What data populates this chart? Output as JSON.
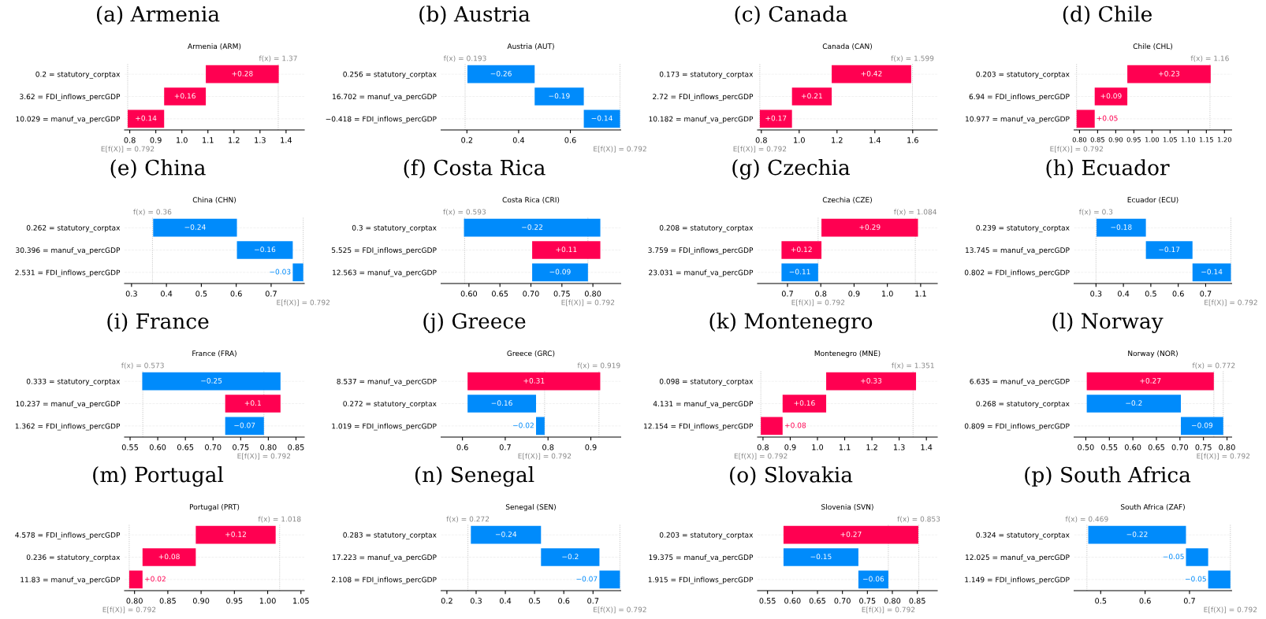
{
  "chart_data": [
    {
      "type": "bar",
      "orientation": "horizontal",
      "title": "(a) Armenia",
      "subtitle": "Armenia (ARM)",
      "categories": [
        "0.2 = statutory_corptax",
        "3.62 = FDI_inflows_percGDP",
        "10.029 = manuf_va_percGDP"
      ],
      "values": [
        0.28,
        0.16,
        0.14
      ],
      "base": [
        1.092,
        0.932,
        0.792
      ],
      "colors": [
        "#ff0051",
        "#ff0051",
        "#ff0051"
      ],
      "value_labels": [
        "+0.28",
        "+0.16",
        "+0.14"
      ],
      "xlim": [
        0.78,
        1.47
      ],
      "xticks": [
        0.8,
        0.9,
        {
          "value": 1,
          "label": "1.0"
        },
        1.1,
        1.2,
        1.3,
        1.4
      ],
      "grid": "y",
      "ref_lines": [
        {
          "axis": "x",
          "value": 1.37,
          "label": "f(x) = 1.37",
          "line_style": "dotted"
        },
        {
          "axis": "x",
          "value": 0.792,
          "label": "E[f(X)] = 0.792",
          "line_style": "dotted"
        }
      ]
    },
    {
      "type": "bar",
      "orientation": "horizontal",
      "title": "(b) Austria",
      "subtitle": "Austria (AUT)",
      "categories": [
        "0.256 = statutory_corptax",
        "16.702 = manuf_va_percGDP",
        "−0.418 = FDI_inflows_percGDP"
      ],
      "values": [
        -0.26,
        -0.19,
        -0.14
      ],
      "base": [
        0.462,
        0.652,
        0.792
      ],
      "colors": [
        "#008bfb",
        "#008bfb",
        "#008bfb"
      ],
      "value_labels": [
        "−0.26",
        "−0.19",
        "−0.14"
      ],
      "xlim": [
        0.1,
        0.795
      ],
      "xticks": [
        0.2,
        0.4,
        0.6
      ],
      "grid": "y",
      "ref_lines": [
        {
          "axis": "x",
          "value": 0.193,
          "label": "f(x) = 0.193",
          "line_style": "dotted"
        },
        {
          "axis": "x",
          "value": 0.792,
          "label": "E[f(X)] = 0.792",
          "line_style": "dotted"
        }
      ]
    },
    {
      "type": "bar",
      "orientation": "horizontal",
      "title": "(c) Canada",
      "subtitle": "Canada (CAN)",
      "categories": [
        "0.173 = statutory_corptax",
        "2.72 = FDI_inflows_percGDP",
        "10.182 = manuf_va_percGDP"
      ],
      "values": [
        0.42,
        0.21,
        0.17
      ],
      "base": [
        1.172,
        0.962,
        0.792
      ],
      "colors": [
        "#ff0051",
        "#ff0051",
        "#ff0051"
      ],
      "value_labels": [
        "+0.42",
        "+0.21",
        "+0.17"
      ],
      "xlim": [
        0.78,
        1.73
      ],
      "xticks": [
        0.8,
        {
          "value": 1,
          "label": "1.0"
        },
        1.2,
        1.4,
        1.6
      ],
      "grid": "y",
      "ref_lines": [
        {
          "axis": "x",
          "value": 1.599,
          "label": "f(x) = 1.599",
          "line_style": "dotted"
        },
        {
          "axis": "x",
          "value": 0.792,
          "label": "E[f(X)] = 0.792",
          "line_style": "dotted"
        }
      ]
    },
    {
      "type": "bar",
      "orientation": "horizontal",
      "title": "(d) Chile",
      "subtitle": "Chile (CHL)",
      "categories": [
        "0.203 = statutory_corptax",
        "6.94 = FDI_inflows_percGDP",
        "10.977 = manuf_va_percGDP"
      ],
      "values": [
        0.23,
        0.09,
        0.05
      ],
      "base": [
        0.932,
        0.842,
        0.792
      ],
      "colors": [
        "#ff0051",
        "#ff0051",
        "#ff0051"
      ],
      "value_labels": [
        "+0.23",
        "+0.09",
        "+0.05"
      ],
      "xlim": [
        0.785,
        1.22
      ],
      "xticks": [
        {
          "value": 0.8,
          "label": "0.80"
        },
        {
          "value": 0.85,
          "label": "0.85"
        },
        {
          "value": 0.9,
          "label": "0.90"
        },
        {
          "value": 0.95,
          "label": "0.95"
        },
        {
          "value": 1.0,
          "label": "1.00"
        },
        {
          "value": 1.05,
          "label": "1.05"
        },
        {
          "value": 1.1,
          "label": "1.10"
        },
        {
          "value": 1.15,
          "label": "1.15"
        },
        {
          "value": 1.2,
          "label": "1.20"
        }
      ],
      "grid": "y",
      "ref_lines": [
        {
          "axis": "x",
          "value": 1.16,
          "label": "f(x) = 1.16",
          "line_style": "dotted"
        },
        {
          "axis": "x",
          "value": 0.792,
          "label": "E[f(X)] = 0.792",
          "line_style": "dotted"
        }
      ]
    },
    {
      "type": "bar",
      "orientation": "horizontal",
      "title": "(e) China",
      "subtitle": "China (CHN)",
      "categories": [
        "0.262 = statutory_corptax",
        "30.396 = manuf_va_percGDP",
        "2.531 = FDI_inflows_percGDP"
      ],
      "values": [
        -0.24,
        -0.16,
        -0.03
      ],
      "base": [
        0.602,
        0.762,
        0.792
      ],
      "colors": [
        "#008bfb",
        "#008bfb",
        "#008bfb"
      ],
      "value_labels": [
        "−0.24",
        "−0.16",
        "−0.03"
      ],
      "xlim": [
        0.28,
        0.795
      ],
      "xticks": [
        0.3,
        0.4,
        0.5,
        0.6,
        0.7
      ],
      "grid": "y",
      "ref_lines": [
        {
          "axis": "x",
          "value": 0.36,
          "label": "f(x) = 0.36",
          "line_style": "dotted"
        },
        {
          "axis": "x",
          "value": 0.792,
          "label": "E[f(X)] = 0.792",
          "line_style": "dotted"
        }
      ]
    },
    {
      "type": "bar",
      "orientation": "horizontal",
      "title": "(f) Costa Rica",
      "subtitle": "Costa Rica (CRI)",
      "categories": [
        "0.3 = statutory_corptax",
        "5.525 = FDI_inflows_percGDP",
        "12.563 = manuf_va_percGDP"
      ],
      "values": [
        -0.22,
        0.11,
        -0.09
      ],
      "base": [
        0.812,
        0.702,
        0.792
      ],
      "colors": [
        "#008bfb",
        "#ff0051",
        "#008bfb"
      ],
      "value_labels": [
        "−0.22",
        "+0.11",
        "−0.09"
      ],
      "xlim": [
        0.555,
        0.845
      ],
      "xticks": [
        {
          "value": 0.6,
          "label": "0.60"
        },
        {
          "value": 0.65,
          "label": "0.65"
        },
        {
          "value": 0.7,
          "label": "0.70"
        },
        {
          "value": 0.75,
          "label": "0.75"
        },
        {
          "value": 0.8,
          "label": "0.80"
        }
      ],
      "grid": "y",
      "ref_lines": [
        {
          "axis": "x",
          "value": 0.593,
          "label": "f(x) = 0.593",
          "line_style": "dotted"
        },
        {
          "axis": "x",
          "value": 0.792,
          "label": "E[f(X)] = 0.792",
          "line_style": "dotted"
        }
      ]
    },
    {
      "type": "bar",
      "orientation": "horizontal",
      "title": "(g) Czechia",
      "subtitle": "Czechia (CZE)",
      "categories": [
        "0.208 = statutory_corptax",
        "3.759 = FDI_inflows_percGDP",
        "23.031 = manuf_va_percGDP"
      ],
      "values": [
        0.29,
        0.12,
        -0.11
      ],
      "base": [
        0.802,
        0.682,
        0.792
      ],
      "colors": [
        "#ff0051",
        "#ff0051",
        "#008bfb"
      ],
      "value_labels": [
        "+0.29",
        "+0.12",
        "−0.11"
      ],
      "xlim": [
        0.61,
        1.15
      ],
      "xticks": [
        0.7,
        0.8,
        0.9,
        {
          "value": 1,
          "label": "1.0"
        },
        1.1
      ],
      "grid": "y",
      "ref_lines": [
        {
          "axis": "x",
          "value": 1.084,
          "label": "f(x) = 1.084",
          "line_style": "dotted"
        },
        {
          "axis": "x",
          "value": 0.792,
          "label": "E[f(X)] = 0.792",
          "line_style": "dotted"
        }
      ]
    },
    {
      "type": "bar",
      "orientation": "horizontal",
      "title": "(h) Ecuador",
      "subtitle": "Ecuador (ECU)",
      "categories": [
        "0.239 = statutory_corptax",
        "13.745 = manuf_va_percGDP",
        "0.802 = FDI_inflows_percGDP"
      ],
      "values": [
        -0.18,
        -0.17,
        -0.14
      ],
      "base": [
        0.482,
        0.652,
        0.792
      ],
      "colors": [
        "#008bfb",
        "#008bfb",
        "#008bfb"
      ],
      "value_labels": [
        "−0.18",
        "−0.17",
        "−0.14"
      ],
      "xlim": [
        0.22,
        0.795
      ],
      "xticks": [
        0.3,
        0.4,
        0.5,
        0.6,
        0.7
      ],
      "grid": "y",
      "ref_lines": [
        {
          "axis": "x",
          "value": 0.3,
          "label": "f(x) = 0.3",
          "line_style": "dotted"
        },
        {
          "axis": "x",
          "value": 0.792,
          "label": "E[f(X)] = 0.792",
          "line_style": "dotted"
        }
      ]
    },
    {
      "type": "bar",
      "orientation": "horizontal",
      "title": "(i) France",
      "subtitle": "France (FRA)",
      "categories": [
        "0.333 = statutory_corptax",
        "10.237 = manuf_va_percGDP",
        "1.362 = FDI_inflows_percGDP"
      ],
      "values": [
        -0.25,
        0.1,
        -0.07
      ],
      "base": [
        0.822,
        0.722,
        0.792
      ],
      "colors": [
        "#008bfb",
        "#ff0051",
        "#008bfb"
      ],
      "value_labels": [
        "−0.25",
        "+0.1",
        "−0.07"
      ],
      "xlim": [
        0.54,
        0.865
      ],
      "xticks": [
        {
          "value": 0.55,
          "label": "0.55"
        },
        {
          "value": 0.6,
          "label": "0.60"
        },
        {
          "value": 0.65,
          "label": "0.65"
        },
        {
          "value": 0.7,
          "label": "0.70"
        },
        {
          "value": 0.75,
          "label": "0.75"
        },
        {
          "value": 0.8,
          "label": "0.80"
        },
        {
          "value": 0.85,
          "label": "0.85"
        }
      ],
      "grid": "y",
      "ref_lines": [
        {
          "axis": "x",
          "value": 0.573,
          "label": "f(x) = 0.573",
          "line_style": "dotted"
        },
        {
          "axis": "x",
          "value": 0.792,
          "label": "E[f(X)] = 0.792",
          "line_style": "dotted"
        }
      ]
    },
    {
      "type": "bar",
      "orientation": "horizontal",
      "title": "(j) Greece",
      "subtitle": "Greece (GRC)",
      "categories": [
        "8.537 = manuf_va_percGDP",
        "0.272 = statutory_corptax",
        "1.019 = FDI_inflows_percGDP"
      ],
      "values": [
        0.31,
        -0.16,
        -0.02
      ],
      "base": [
        0.612,
        0.772,
        0.792
      ],
      "colors": [
        "#ff0051",
        "#008bfb",
        "#008bfb"
      ],
      "value_labels": [
        "+0.31",
        "−0.16",
        "−0.02"
      ],
      "xlim": [
        0.55,
        0.97
      ],
      "xticks": [
        0.6,
        0.7,
        0.8,
        0.9
      ],
      "grid": "y",
      "ref_lines": [
        {
          "axis": "x",
          "value": 0.919,
          "label": "f(x) = 0.919",
          "line_style": "dotted"
        },
        {
          "axis": "x",
          "value": 0.792,
          "label": "E[f(X)] = 0.792",
          "line_style": "dotted"
        }
      ]
    },
    {
      "type": "bar",
      "orientation": "horizontal",
      "title": "(k) Montenegro",
      "subtitle": "Montenegro (MNE)",
      "categories": [
        "0.098 = statutory_corptax",
        "4.131 = manuf_va_percGDP",
        "12.154 = FDI_inflows_percGDP"
      ],
      "values": [
        0.33,
        0.16,
        0.08
      ],
      "base": [
        1.032,
        0.872,
        0.792
      ],
      "colors": [
        "#ff0051",
        "#ff0051",
        "#ff0051"
      ],
      "value_labels": [
        "+0.33",
        "+0.16",
        "+0.08"
      ],
      "xlim": [
        0.78,
        1.44
      ],
      "xticks": [
        0.8,
        0.9,
        {
          "value": 1,
          "label": "1.0"
        },
        1.1,
        1.2,
        1.3,
        1.4
      ],
      "grid": "y",
      "ref_lines": [
        {
          "axis": "x",
          "value": 1.351,
          "label": "f(x) = 1.351",
          "line_style": "dotted"
        },
        {
          "axis": "x",
          "value": 0.792,
          "label": "E[f(X)] = 0.792",
          "line_style": "dotted"
        }
      ]
    },
    {
      "type": "bar",
      "orientation": "horizontal",
      "title": "(l) Norway",
      "subtitle": "Norway (NOR)",
      "categories": [
        "6.635 = manuf_va_percGDP",
        "0.268 = statutory_corptax",
        "0.809 = FDI_inflows_percGDP"
      ],
      "values": [
        0.27,
        -0.2,
        -0.09
      ],
      "base": [
        0.502,
        0.702,
        0.792
      ],
      "colors": [
        "#ff0051",
        "#008bfb",
        "#008bfb"
      ],
      "value_labels": [
        "+0.27",
        "−0.2",
        "−0.09"
      ],
      "xlim": [
        0.475,
        0.81
      ],
      "xticks": [
        {
          "value": 0.5,
          "label": "0.50"
        },
        {
          "value": 0.55,
          "label": "0.55"
        },
        {
          "value": 0.6,
          "label": "0.60"
        },
        {
          "value": 0.65,
          "label": "0.65"
        },
        {
          "value": 0.7,
          "label": "0.70"
        },
        {
          "value": 0.75,
          "label": "0.75"
        },
        {
          "value": 0.8,
          "label": "0.80"
        }
      ],
      "grid": "y",
      "ref_lines": [
        {
          "axis": "x",
          "value": 0.772,
          "label": "f(x) = 0.772",
          "line_style": "dotted"
        },
        {
          "axis": "x",
          "value": 0.792,
          "label": "E[f(X)] = 0.792",
          "line_style": "dotted"
        }
      ]
    },
    {
      "type": "bar",
      "orientation": "horizontal",
      "title": "(m) Portugal",
      "subtitle": "Portugal (PRT)",
      "categories": [
        "4.578 = FDI_inflows_percGDP",
        "0.236 = statutory_corptax",
        "11.83 = manuf_va_percGDP"
      ],
      "values": [
        0.12,
        0.08,
        0.02
      ],
      "base": [
        0.892,
        0.812,
        0.792
      ],
      "colors": [
        "#ff0051",
        "#ff0051",
        "#ff0051"
      ],
      "value_labels": [
        "+0.12",
        "+0.08",
        "+0.02"
      ],
      "xlim": [
        0.785,
        1.055
      ],
      "xticks": [
        {
          "value": 0.8,
          "label": "0.80"
        },
        {
          "value": 0.85,
          "label": "0.85"
        },
        {
          "value": 0.9,
          "label": "0.90"
        },
        {
          "value": 0.95,
          "label": "0.95"
        },
        {
          "value": 1.0,
          "label": "1.00"
        },
        {
          "value": 1.05,
          "label": "1.05"
        }
      ],
      "grid": "y",
      "ref_lines": [
        {
          "axis": "x",
          "value": 1.018,
          "label": "f(x) = 1.018",
          "line_style": "dotted"
        },
        {
          "axis": "x",
          "value": 0.792,
          "label": "E[f(X)] = 0.792",
          "line_style": "dotted"
        }
      ]
    },
    {
      "type": "bar",
      "orientation": "horizontal",
      "title": "(n) Senegal",
      "subtitle": "Senegal (SEN)",
      "categories": [
        "0.283 = statutory_corptax",
        "17.223 = manuf_va_percGDP",
        "2.108 = FDI_inflows_percGDP"
      ],
      "values": [
        -0.24,
        -0.2,
        -0.07
      ],
      "base": [
        0.522,
        0.722,
        0.792
      ],
      "colors": [
        "#008bfb",
        "#008bfb",
        "#008bfb"
      ],
      "value_labels": [
        "−0.24",
        "−0.2",
        "−0.07"
      ],
      "xlim": [
        0.18,
        0.795
      ],
      "xticks": [
        0.2,
        0.3,
        0.4,
        0.5,
        0.6,
        0.7
      ],
      "grid": "y",
      "ref_lines": [
        {
          "axis": "x",
          "value": 0.272,
          "label": "f(x) = 0.272",
          "line_style": "dotted"
        },
        {
          "axis": "x",
          "value": 0.792,
          "label": "E[f(X)] = 0.792",
          "line_style": "dotted"
        }
      ]
    },
    {
      "type": "bar",
      "orientation": "horizontal",
      "title": "(o) Slovakia",
      "subtitle": "Slovenia (SVN)",
      "categories": [
        "0.203 = statutory_corptax",
        "19.375 = manuf_va_percGDP",
        "1.915 = FDI_inflows_percGDP"
      ],
      "values": [
        0.27,
        -0.15,
        -0.06
      ],
      "base": [
        0.582,
        0.732,
        0.792
      ],
      "colors": [
        "#ff0051",
        "#008bfb",
        "#008bfb"
      ],
      "value_labels": [
        "+0.27",
        "−0.15",
        "−0.06"
      ],
      "xlim": [
        0.53,
        0.89
      ],
      "xticks": [
        {
          "value": 0.55,
          "label": "0.55"
        },
        {
          "value": 0.6,
          "label": "0.60"
        },
        {
          "value": 0.65,
          "label": "0.65"
        },
        {
          "value": 0.7,
          "label": "0.70"
        },
        {
          "value": 0.75,
          "label": "0.75"
        },
        {
          "value": 0.8,
          "label": "0.80"
        },
        {
          "value": 0.85,
          "label": "0.85"
        }
      ],
      "grid": "y",
      "ref_lines": [
        {
          "axis": "x",
          "value": 0.853,
          "label": "f(x) = 0.853",
          "line_style": "dotted"
        },
        {
          "axis": "x",
          "value": 0.792,
          "label": "E[f(X)] = 0.792",
          "line_style": "dotted"
        }
      ]
    },
    {
      "type": "bar",
      "orientation": "horizontal",
      "title": "(p) South Africa",
      "subtitle": "South Africa (ZAF)",
      "categories": [
        "0.324 = statutory_corptax",
        "12.025 = manuf_va_percGDP",
        "1.149 = FDI_inflows_percGDP"
      ],
      "values": [
        -0.22,
        -0.05,
        -0.05
      ],
      "base": [
        0.692,
        0.742,
        0.792
      ],
      "colors": [
        "#008bfb",
        "#008bfb",
        "#008bfb"
      ],
      "value_labels": [
        "−0.22",
        "−0.05",
        "−0.05"
      ],
      "xlim": [
        0.44,
        0.795
      ],
      "xticks": [
        0.5,
        0.6,
        0.7
      ],
      "grid": "y",
      "ref_lines": [
        {
          "axis": "x",
          "value": 0.469,
          "label": "f(x) = 0.469",
          "line_style": "dotted"
        },
        {
          "axis": "x",
          "value": 0.792,
          "label": "E[f(X)] = 0.792",
          "line_style": "dotted"
        }
      ]
    }
  ]
}
